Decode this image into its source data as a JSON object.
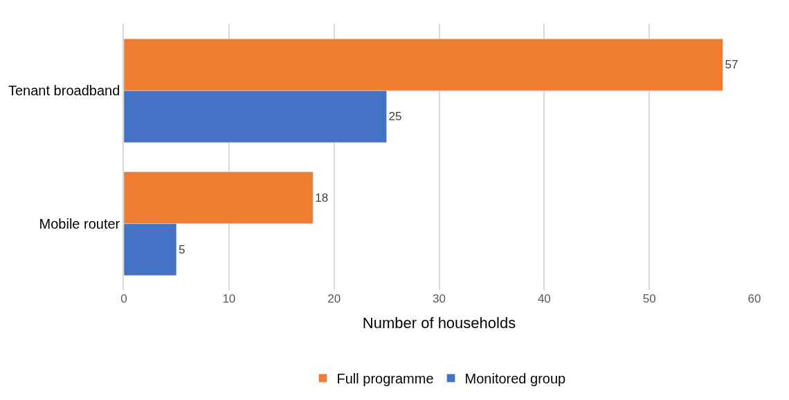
{
  "chart_data": {
    "type": "bar",
    "orientation": "horizontal",
    "xlabel": "Number of households",
    "categories": [
      "Tenant broadband",
      "Mobile router"
    ],
    "series": [
      {
        "name": "Full programme",
        "color": "#ed7d31",
        "values": [
          57,
          18
        ]
      },
      {
        "name": "Monitored group",
        "color": "#4472c4",
        "values": [
          25,
          5
        ]
      }
    ],
    "xlim": [
      0,
      60
    ],
    "xticks": [
      0,
      10,
      20,
      30,
      40,
      50,
      60
    ],
    "grid": "x",
    "legend": "bottom",
    "data_labels": true
  }
}
